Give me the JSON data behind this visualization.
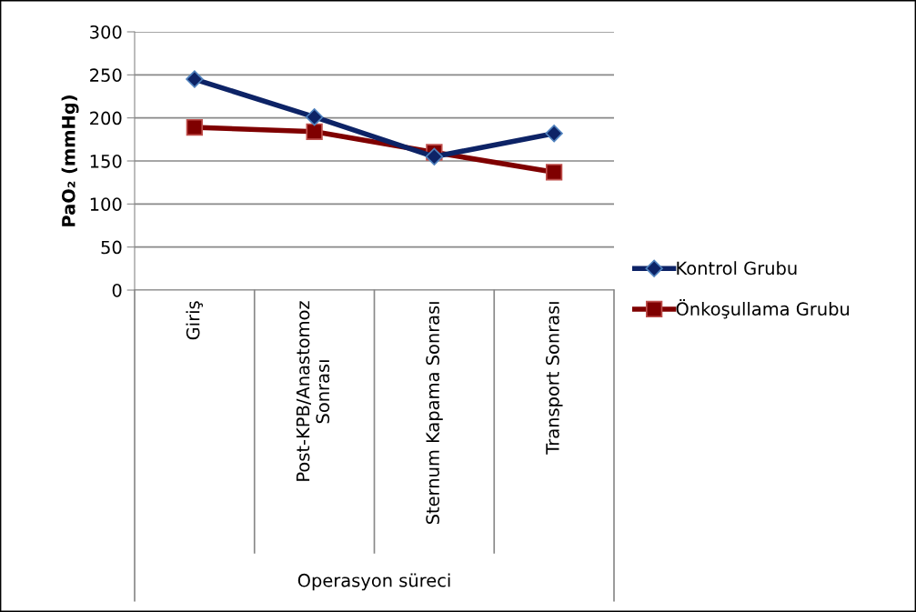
{
  "chart_data": {
    "type": "line",
    "xlabel": "Operasyon süreci",
    "ylabel": "PaO₂ (mmHg)",
    "categories": [
      "Giriş",
      "Post-KPB/Anastomoz\nSonrası",
      "Sternum Kapama Sonrası",
      "Transport Sonrası"
    ],
    "series": [
      {
        "name": "Kontrol Grubu",
        "color": "#0d2366",
        "marker": "diamond",
        "values": [
          245,
          201,
          155,
          182
        ]
      },
      {
        "name": "Önkoşullama Grubu",
        "color": "#7f0000",
        "marker": "square",
        "values": [
          189,
          184,
          160,
          137
        ]
      }
    ],
    "ylim": [
      0,
      300
    ],
    "yticks": [
      0,
      50,
      100,
      150,
      200,
      250,
      300
    ],
    "grid": "y",
    "legend": "right",
    "line_style": "solid"
  }
}
